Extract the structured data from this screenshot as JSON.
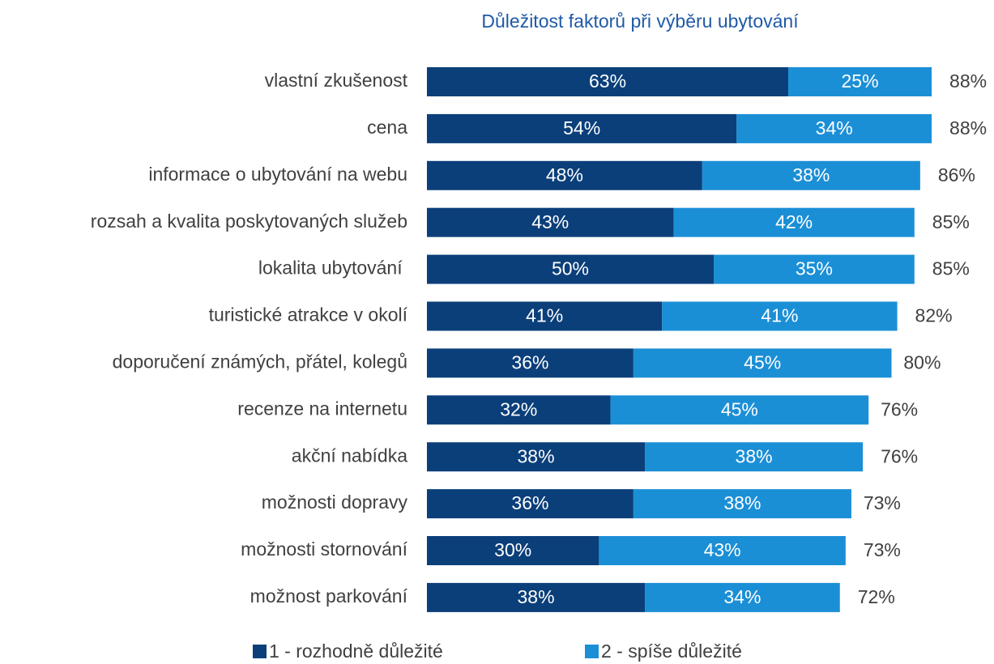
{
  "chart_data": {
    "type": "stacked-bar-horizontal",
    "title": "Důležitost faktorů při výběru ubytování",
    "categories": [
      "vlastní zkušenost",
      "cena",
      "informace o ubytování na webu",
      "rozsah a kvalita poskytovaných služeb",
      "lokalita ubytování ",
      "turistické atrakce v okolí",
      "doporučení známých, přátel, kolegů",
      "recenze na internetu",
      "akční nabídka",
      "možnosti dopravy",
      "možnosti stornování",
      "možnost parkování"
    ],
    "series": [
      {
        "name": "1 - rozhodně důležité",
        "color": "#0b3f7a",
        "values": [
          63,
          54,
          48,
          43,
          50,
          41,
          36,
          32,
          38,
          36,
          30,
          38
        ],
        "value_labels": [
          "63%",
          "54%",
          "48%",
          "43%",
          "50%",
          "41%",
          "36%",
          "32%",
          "38%",
          "36%",
          "30%",
          "38%"
        ]
      },
      {
        "name": "2 - spíše důležité",
        "color": "#1b8fd6",
        "values": [
          25,
          34,
          38,
          42,
          35,
          41,
          45,
          45,
          38,
          38,
          43,
          34
        ],
        "value_labels": [
          "25%",
          "34%",
          "38%",
          "42%",
          "35%",
          "41%",
          "45%",
          "45%",
          "38%",
          "38%",
          "43%",
          "34%"
        ]
      }
    ],
    "totals": [
      88,
      88,
      86,
      85,
      85,
      82,
      80,
      76,
      76,
      73,
      73,
      72
    ],
    "total_labels": [
      "88%",
      "88%",
      "86%",
      "85%",
      "85%",
      "82%",
      "80%",
      "76%",
      "76%",
      "73%",
      "73%",
      "72%"
    ],
    "xlim": [
      0,
      100
    ]
  }
}
